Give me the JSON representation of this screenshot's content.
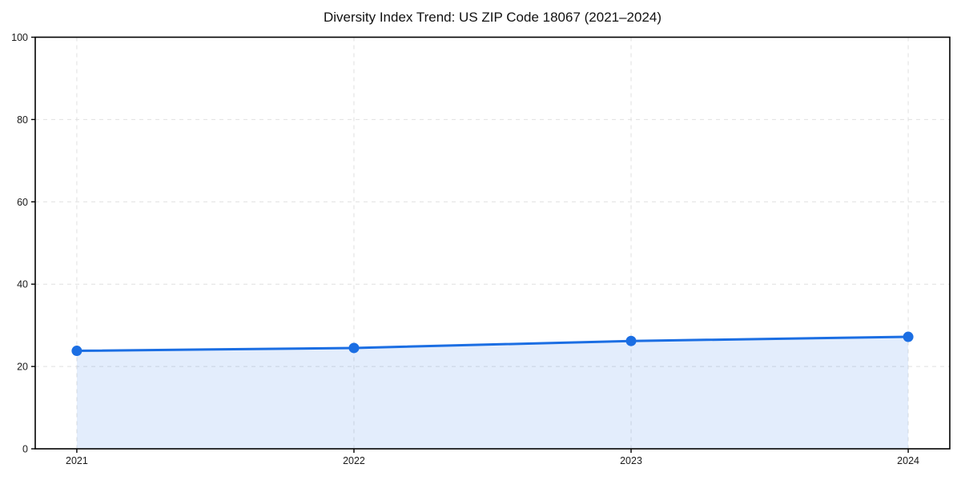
{
  "chart_data": {
    "type": "line",
    "title": "Diversity Index Trend: US ZIP Code 18067 (2021–2024)",
    "x": [
      2021,
      2022,
      2023,
      2024
    ],
    "xticklabels": [
      "2021",
      "2022",
      "2023",
      "2024"
    ],
    "series": [
      {
        "name": "Diversity Index",
        "values": [
          23.8,
          24.5,
          26.2,
          27.2
        ],
        "line_color": "#1b6ee3",
        "marker_color": "#1b6ee3",
        "area_fill": true
      }
    ],
    "xlabel": "",
    "ylabel": "",
    "ylim": [
      0,
      100
    ],
    "yticks": [
      0,
      20,
      40,
      60,
      80,
      100
    ],
    "grid": "both",
    "grid_style": "dashed",
    "legend": "none",
    "colors": {
      "line": "#1b6ee3",
      "area_fill_rgba": "rgba(27, 110, 227, 0.12)",
      "grid": "#e0e0e0",
      "spine": "#000000",
      "tick_text": "#1a1a1a",
      "background": "#ffffff"
    }
  }
}
